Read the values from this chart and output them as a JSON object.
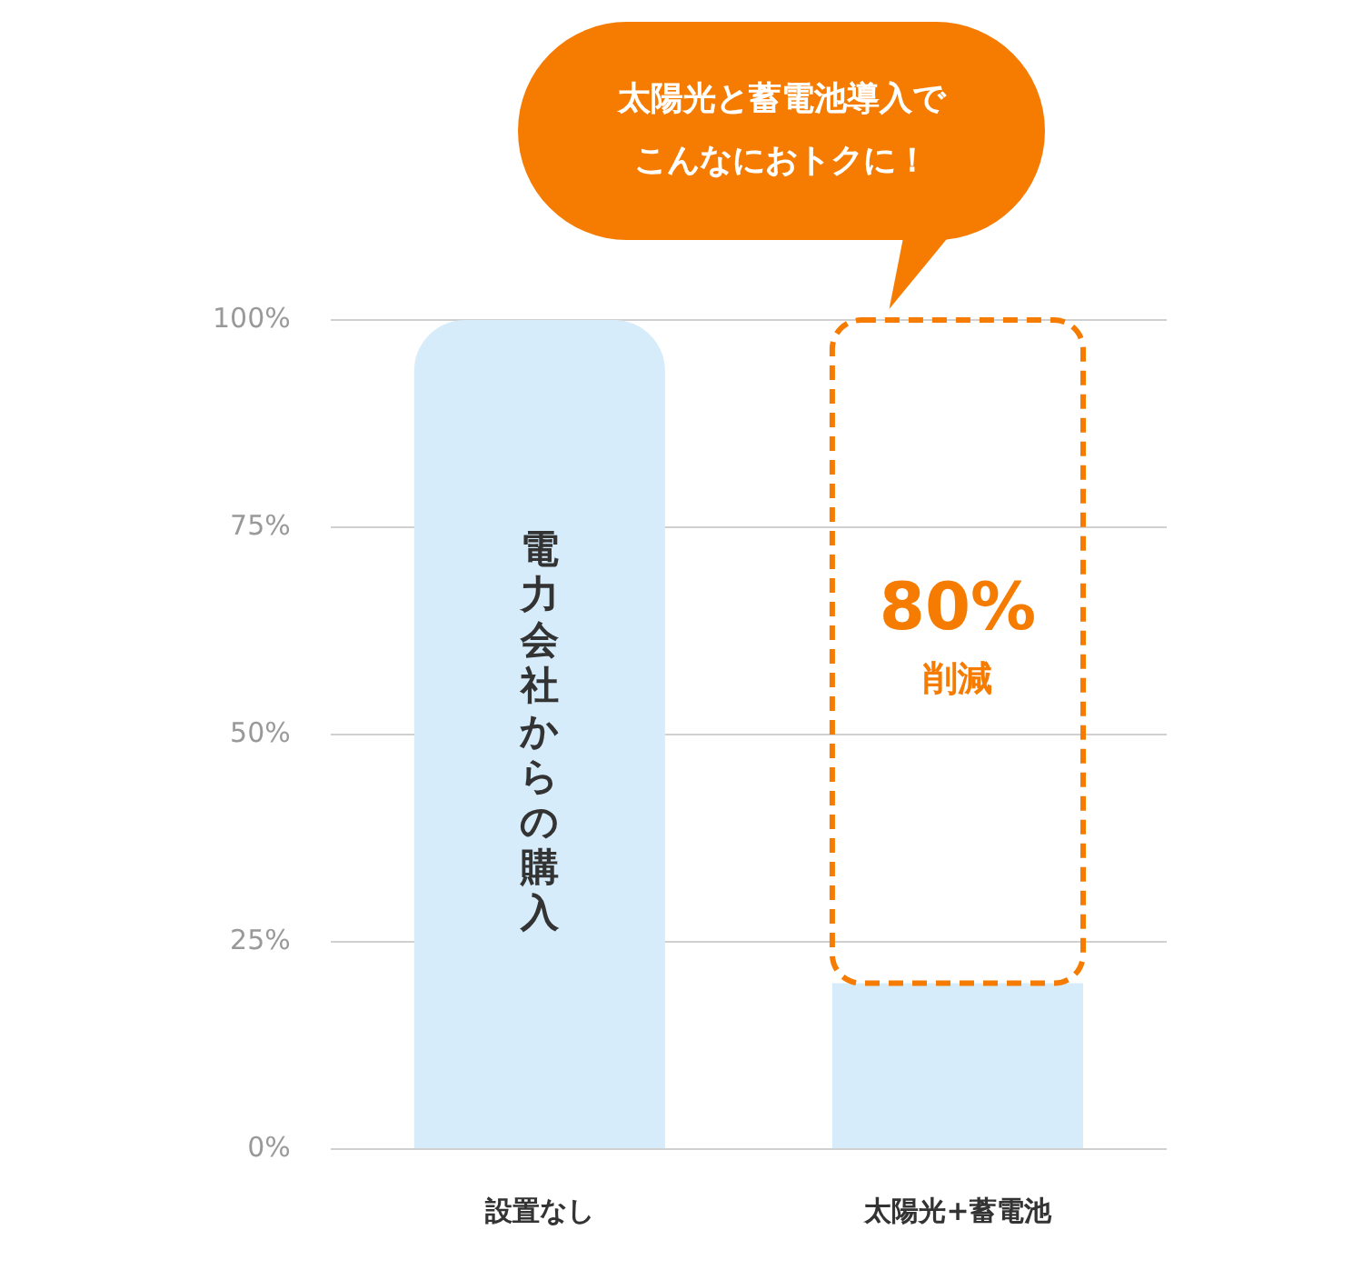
{
  "chart_data": {
    "type": "bar",
    "title": "太陽光と蓄電池導入でこんなにおトクに！",
    "categories": [
      "設置なし",
      "太陽光+蓄電池"
    ],
    "stacked": true,
    "series": [
      {
        "name": "電力会社からの購入",
        "color": "#d6ecfa",
        "values": [
          100,
          20
        ]
      },
      {
        "color": "#f57c00",
        "values": [
          null,
          80
        ],
        "line_style": "dashed",
        "value_labels": [
          null,
          "80%"
        ]
      }
    ],
    "annotations": [
      "削減"
    ],
    "ylim": [
      0,
      100
    ],
    "yticks": [
      {
        "value": 0,
        "label": "0%"
      },
      {
        "value": 25,
        "label": "25%"
      },
      {
        "value": 50,
        "label": "50%"
      },
      {
        "value": 75,
        "label": "75%"
      },
      {
        "value": 100,
        "label": "100%"
      }
    ],
    "grid": "y",
    "legend": false
  }
}
